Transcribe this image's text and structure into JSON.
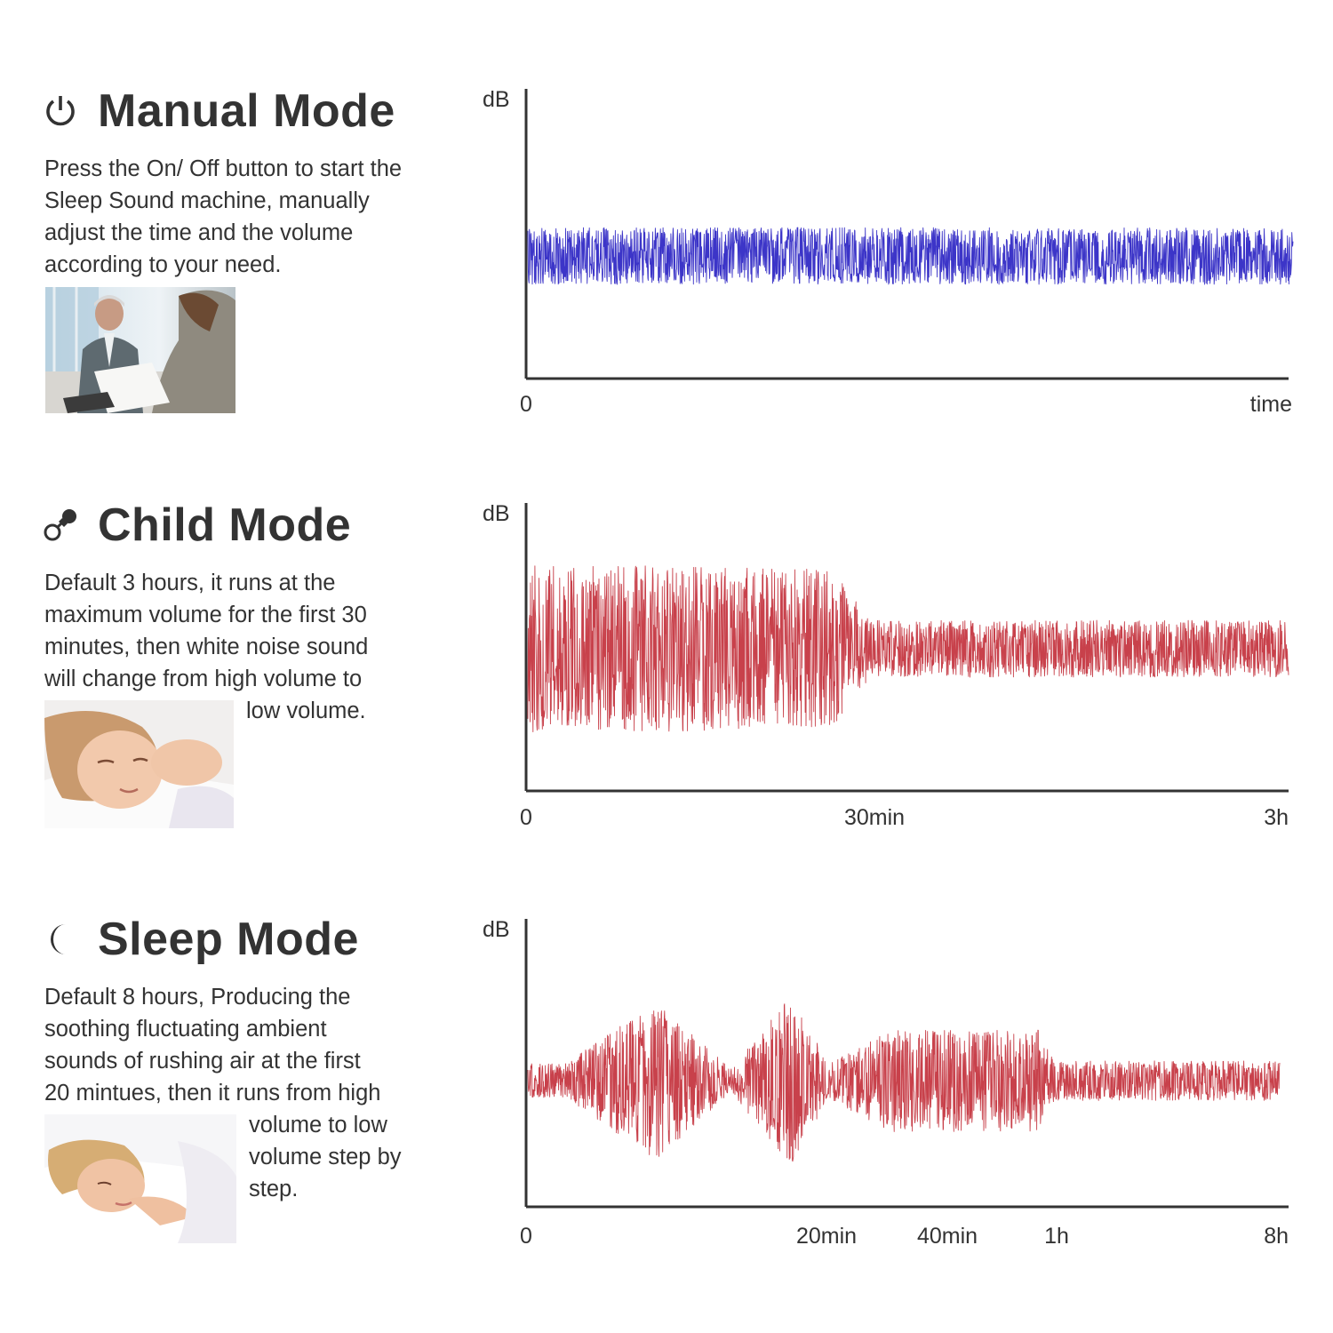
{
  "modes": [
    {
      "title": "Manual Mode",
      "icon": "power-icon",
      "description": "Press the On/ Off button to start the Sleep Sound machine, manually adjust the time and the volume according to your need.",
      "photo": "office-meeting-photo"
    },
    {
      "title": "Child Mode",
      "icon": "pacifier-icon",
      "description_lines": [
        "Default 3 hours, it runs at the",
        "maximum volume for the first 30",
        "minutes, then white noise sound",
        "will change from high volume to",
        "low volume."
      ],
      "photo": "sleeping-child-photo"
    },
    {
      "title": "Sleep Mode",
      "icon": "moon-icon",
      "description_lines": [
        "Default 8 hours, Producing the",
        "soothing fluctuating ambient",
        "sounds of rushing air at the first",
        "20 mintues, then it runs from high",
        "volume to low",
        "volume step by",
        "step."
      ],
      "photo": "sleeping-woman-photo"
    }
  ],
  "chart_data": [
    {
      "type": "line",
      "ylabel": "dB",
      "xlabel": "time",
      "x_ticks": [
        "0",
        "time"
      ],
      "color": "#3c35c8",
      "amplitude_profile": [
        {
          "x": 0.0,
          "amp": 0.1
        },
        {
          "x": 1.0,
          "amp": 0.1
        }
      ]
    },
    {
      "type": "line",
      "ylabel": "dB",
      "x_ticks": [
        "0",
        "30min",
        "3h"
      ],
      "color": "#c8414b",
      "amplitude_profile": [
        {
          "x": 0.0,
          "amp": 0.3
        },
        {
          "x": 0.4,
          "amp": 0.28
        },
        {
          "x": 0.45,
          "amp": 0.1
        },
        {
          "x": 1.0,
          "amp": 0.1
        }
      ]
    },
    {
      "type": "line",
      "ylabel": "dB",
      "x_ticks": [
        "0",
        "20min",
        "40min",
        "1h",
        "8h"
      ],
      "color": "#c8414b",
      "amplitude_profile": [
        {
          "x": 0.0,
          "amp": 0.06
        },
        {
          "x": 0.05,
          "amp": 0.06
        },
        {
          "x": 0.17,
          "amp": 0.28
        },
        {
          "x": 0.27,
          "amp": 0.04
        },
        {
          "x": 0.35,
          "amp": 0.3
        },
        {
          "x": 0.4,
          "amp": 0.06
        },
        {
          "x": 0.48,
          "amp": 0.18
        },
        {
          "x": 0.68,
          "amp": 0.18
        },
        {
          "x": 0.7,
          "amp": 0.07
        },
        {
          "x": 1.0,
          "amp": 0.07
        }
      ]
    }
  ]
}
